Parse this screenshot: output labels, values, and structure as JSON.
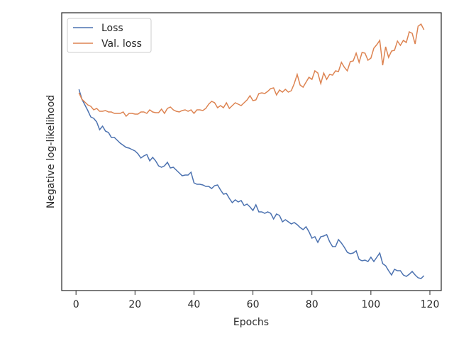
{
  "chart_data": {
    "type": "line",
    "xlabel": "Epochs",
    "ylabel": "Negative log-likelihood",
    "x": [
      1,
      2,
      3,
      4,
      5,
      6,
      7,
      8,
      9,
      10,
      11,
      12,
      13,
      14,
      15,
      16,
      17,
      18,
      19,
      20,
      21,
      22,
      23,
      24,
      25,
      26,
      27,
      28,
      29,
      30,
      31,
      32,
      33,
      34,
      35,
      36,
      37,
      38,
      39,
      40,
      41,
      42,
      43,
      44,
      45,
      46,
      47,
      48,
      49,
      50,
      51,
      52,
      53,
      54,
      55,
      56,
      57,
      58,
      59,
      60,
      61,
      62,
      63,
      64,
      65,
      66,
      67,
      68,
      69,
      70,
      71,
      72,
      73,
      74,
      75,
      76,
      77,
      78,
      79,
      80,
      81,
      82,
      83,
      84,
      85,
      86,
      87,
      88,
      89,
      90,
      91,
      92,
      93,
      94,
      95,
      96,
      97,
      98,
      99,
      100,
      101,
      102,
      103,
      104,
      105,
      106,
      107,
      108,
      109,
      110,
      111,
      112,
      113,
      114,
      115,
      116,
      117,
      118
    ],
    "series": [
      {
        "name": "Loss",
        "color": "#4c72b0",
        "values": [
          284,
          270,
          262,
          254,
          245,
          243,
          238,
          227,
          232,
          225,
          223,
          216,
          216,
          212,
          208,
          205,
          202,
          201,
          199,
          197,
          193,
          187,
          190,
          192,
          183,
          188,
          183,
          176,
          174,
          176,
          181,
          173,
          174,
          170,
          166,
          162,
          163,
          163,
          167,
          152,
          150,
          150,
          149,
          147,
          147,
          144,
          148,
          149,
          142,
          136,
          137,
          130,
          124,
          128,
          125,
          127,
          120,
          122,
          118,
          113,
          121,
          111,
          111,
          109,
          111,
          109,
          101,
          108,
          106,
          97,
          100,
          97,
          94,
          96,
          93,
          89,
          86,
          90,
          83,
          74,
          76,
          68,
          76,
          77,
          79,
          69,
          62,
          62,
          72,
          67,
          61,
          54,
          52,
          53,
          56,
          44,
          42,
          43,
          41,
          47,
          41,
          47,
          53,
          38,
          35,
          28,
          22,
          30,
          28,
          28,
          22,
          20,
          23,
          27,
          22,
          18,
          17,
          21
        ]
      },
      {
        "name": "Val. loss",
        "color": "#dd8452",
        "values": [
          279,
          270,
          266,
          262,
          260,
          255,
          257,
          253,
          253,
          254,
          252,
          252,
          250,
          250,
          250,
          252,
          246,
          250,
          250,
          249,
          249,
          252,
          252,
          250,
          255,
          252,
          251,
          251,
          256,
          250,
          257,
          259,
          255,
          253,
          252,
          254,
          255,
          253,
          255,
          250,
          255,
          255,
          254,
          257,
          263,
          267,
          265,
          258,
          261,
          258,
          265,
          257,
          261,
          265,
          263,
          261,
          265,
          269,
          275,
          268,
          269,
          278,
          279,
          278,
          281,
          285,
          286,
          276,
          283,
          280,
          284,
          280,
          282,
          292,
          305,
          290,
          287,
          294,
          301,
          298,
          310,
          307,
          292,
          307,
          298,
          305,
          304,
          310,
          309,
          322,
          315,
          310,
          323,
          324,
          335,
          322,
          336,
          335,
          325,
          328,
          342,
          347,
          353,
          318,
          344,
          329,
          338,
          339,
          352,
          346,
          353,
          350,
          365,
          363,
          348,
          373,
          376,
          368
        ]
      }
    ],
    "xlim": [
      -4.85,
      123.85
    ],
    "xticks": [
      0,
      20,
      40,
      60,
      80,
      100,
      120
    ],
    "ylim": [
      0,
      392
    ],
    "legend": "upper left"
  }
}
